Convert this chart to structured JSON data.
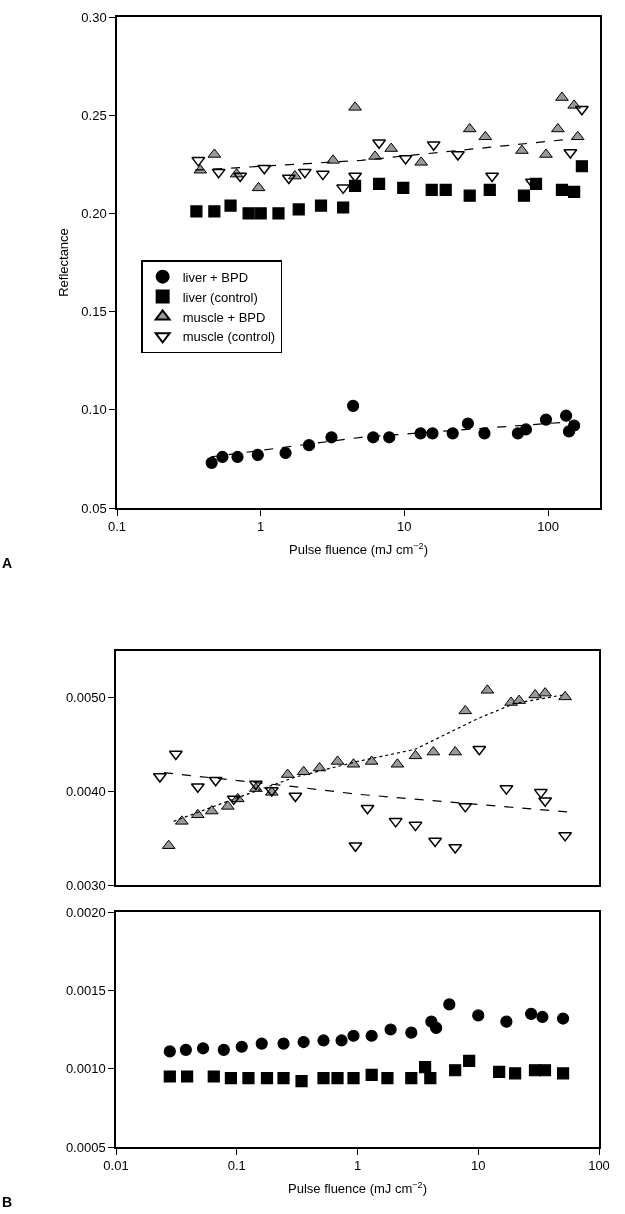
{
  "chart_data": [
    {
      "type": "scatter",
      "xlabel": "Pulse fluence (mJ cm$^{−2}$)",
      "ylabel": "Reflectance",
      "annotations": [
        "A"
      ],
      "log": "x",
      "xlim": [
        0.1,
        230
      ],
      "xticks": [
        0.1,
        1,
        10,
        100
      ],
      "ylim": [
        0.05,
        0.3
      ],
      "yticks": [
        {
          "value": 0.05,
          "label": "0.05"
        },
        {
          "value": 0.1,
          "label": "0.10"
        },
        {
          "value": 0.15,
          "label": "0.15"
        },
        {
          "value": 0.2,
          "label": "0.20"
        },
        {
          "value": 0.25,
          "label": "0.25"
        },
        {
          "value": 0.3,
          "label": "0.30"
        }
      ],
      "legend": "left",
      "series": [
        {
          "name": "liver + BPD",
          "color": "#000000",
          "marker": "circle",
          "x": [
            0.456,
            0.542,
            0.69,
            0.955,
            1.49,
            2.17,
            3.11,
            4.4,
            6.07,
            7.85,
            12.97,
            15.7,
            21.7,
            27.7,
            36.1,
            61.7,
            70.2,
            96.8,
            133.6,
            140,
            152
          ],
          "values": [
            0.073,
            0.076,
            0.076,
            0.077,
            0.078,
            0.082,
            0.086,
            0.102,
            0.086,
            0.086,
            0.088,
            0.088,
            0.088,
            0.093,
            0.088,
            0.088,
            0.09,
            0.095,
            0.097,
            0.089,
            0.092
          ]
        },
        {
          "name": "liver (control)",
          "color": "#000000",
          "marker": "square",
          "x": [
            0.357,
            0.476,
            0.617,
            0.824,
            1.0,
            1.33,
            1.84,
            2.63,
            3.75,
            4.54,
            6.67,
            9.83,
            15.5,
            19.4,
            28.5,
            39.3,
            68.0,
            82.5,
            125,
            152,
            172
          ],
          "values": [
            0.201,
            0.201,
            0.204,
            0.2,
            0.2,
            0.2,
            0.202,
            0.204,
            0.203,
            0.214,
            0.215,
            0.213,
            0.212,
            0.212,
            0.209,
            0.212,
            0.209,
            0.215,
            0.212,
            0.211,
            0.224
          ]
        },
        {
          "name": "muscle + BPD",
          "color": "#999999",
          "marker": "triangle",
          "x": [
            0.38,
            0.476,
            0.68,
            0.967,
            1.73,
            3.19,
            4.54,
            6.25,
            8.1,
            13.1,
            28.5,
            36.6,
            65.8,
            96.8,
            117,
            125,
            152,
            161
          ],
          "values": [
            0.222,
            0.23,
            0.22,
            0.213,
            0.219,
            0.227,
            0.254,
            0.229,
            0.233,
            0.226,
            0.243,
            0.239,
            0.232,
            0.23,
            0.243,
            0.259,
            0.255,
            0.239
          ]
        },
        {
          "name": "muscle (control)",
          "color": "#000000",
          "marker": "triangle-down",
          "x": [
            0.368,
            0.51,
            0.72,
            1.06,
            1.57,
            2.03,
            2.71,
            3.75,
            4.54,
            6.67,
            10.2,
            16.0,
            23.6,
            40.8,
            77.3,
            143,
            172
          ],
          "values": [
            0.227,
            0.221,
            0.219,
            0.223,
            0.218,
            0.221,
            0.22,
            0.213,
            0.219,
            0.236,
            0.228,
            0.235,
            0.23,
            0.219,
            0.216,
            0.231,
            0.253
          ]
        },
        {
          "type": "line",
          "color": "#000000",
          "line_style": "dashed",
          "marker": "none",
          "x": [
            0.45,
            5,
            150
          ],
          "values": [
            0.076,
            0.086,
            0.094
          ]
        },
        {
          "type": "line",
          "color": "#000000",
          "line_style": "dashed",
          "marker": "none",
          "x": [
            0.35,
            5,
            150
          ],
          "values": [
            0.222,
            0.227,
            0.238
          ]
        }
      ]
    },
    {
      "type": "scatter",
      "log": "x",
      "xlim": [
        0.01,
        100
      ],
      "tick_labels": "y",
      "ylim": [
        0.003,
        0.0055
      ],
      "yticks": [
        {
          "value": 0.003,
          "label": "0.0030"
        },
        {
          "value": 0.004,
          "label": "0.0040"
        },
        {
          "value": 0.005,
          "label": "0.0050"
        }
      ],
      "series": [
        {
          "color": "#999999",
          "marker": "triangle",
          "x": [
            0.0273,
            0.0351,
            0.0476,
            0.0621,
            0.0843,
            0.102,
            0.144,
            0.195,
            0.264,
            0.358,
            0.485,
            0.684,
            0.927,
            1.31,
            2.14,
            3.02,
            4.25,
            6.45,
            7.81,
            11.9,
            18.7,
            21.8,
            29.6,
            35.8,
            52.4
          ],
          "values": [
            0.00342,
            0.00368,
            0.00375,
            0.00379,
            0.00384,
            0.00392,
            0.00403,
            0.00399,
            0.00418,
            0.00421,
            0.00425,
            0.00432,
            0.00429,
            0.00432,
            0.00429,
            0.00438,
            0.00442,
            0.00442,
            0.00486,
            0.00508,
            0.00495,
            0.00497,
            0.00503,
            0.00505,
            0.00501
          ]
        },
        {
          "color": "#000000",
          "marker": "triangle-down",
          "x": [
            0.0231,
            0.0313,
            0.0476,
            0.0669,
            0.0944,
            0.144,
            0.195,
            0.306,
            0.962,
            1.21,
            2.07,
            3.02,
            4.39,
            6.45,
            7.81,
            10.2,
            17.1,
            33.0,
            35.8,
            52.4
          ],
          "values": [
            0.00416,
            0.0044,
            0.00405,
            0.00412,
            0.00392,
            0.00408,
            0.00401,
            0.00395,
            0.00342,
            0.00382,
            0.00368,
            0.00364,
            0.00347,
            0.0034,
            0.00384,
            0.00445,
            0.00403,
            0.00399,
            0.0039,
            0.00353
          ]
        },
        {
          "type": "line",
          "color": "#000000",
          "line_style": "dotted",
          "marker": "none",
          "x": [
            0.03,
            0.1,
            0.3,
            1,
            3,
            10,
            20,
            50
          ],
          "values": [
            0.00368,
            0.00393,
            0.00415,
            0.00432,
            0.00445,
            0.00478,
            0.00494,
            0.00503
          ]
        },
        {
          "type": "line",
          "color": "#000000",
          "line_style": "dashed",
          "marker": "none",
          "x": [
            0.025,
            0.3,
            1,
            10,
            55
          ],
          "values": [
            0.0042,
            0.00405,
            0.00397,
            0.00386,
            0.00378
          ]
        }
      ]
    },
    {
      "type": "scatter",
      "xlabel": "Pulse fluence (mJ cm$^{−2}$)",
      "annotations": [
        "B"
      ],
      "log": "x",
      "xlim": [
        0.01,
        100
      ],
      "xticks": [
        0.01,
        0.1,
        1,
        10,
        100
      ],
      "ylim": [
        0.0005,
        0.002
      ],
      "yticks": [
        {
          "value": 0.0005,
          "label": "0.0005"
        },
        {
          "value": 0.001,
          "label": "0.0010"
        },
        {
          "value": 0.0015,
          "label": "0.0015"
        },
        {
          "value": 0.002,
          "label": "0.0020"
        }
      ],
      "series": [
        {
          "color": "#000000",
          "marker": "circle",
          "x": [
            0.0279,
            0.0379,
            0.0526,
            0.0781,
            0.11,
            0.161,
            0.244,
            0.358,
            0.523,
            0.738,
            0.927,
            1.31,
            1.88,
            2.79,
            4.09,
            4.48,
            5.76,
            10.0,
            17.1,
            27.4,
            34.0,
            50.4
          ],
          "values": [
            0.00111,
            0.00112,
            0.00113,
            0.00112,
            0.00114,
            0.00116,
            0.00116,
            0.00117,
            0.00118,
            0.00118,
            0.00121,
            0.00121,
            0.00125,
            0.00123,
            0.0013,
            0.00126,
            0.00141,
            0.00134,
            0.0013,
            0.00135,
            0.00133,
            0.00132
          ]
        },
        {
          "color": "#000000",
          "marker": "square",
          "x": [
            0.0279,
            0.0388,
            0.0645,
            0.0895,
            0.125,
            0.178,
            0.244,
            0.344,
            0.523,
            0.683,
            0.927,
            1.31,
            1.77,
            2.79,
            3.63,
            4.01,
            6.44,
            8.41,
            14.9,
            20.2,
            29.5,
            35.7,
            50.4
          ],
          "values": [
            0.00095,
            0.00095,
            0.00095,
            0.00094,
            0.00094,
            0.00094,
            0.00094,
            0.00092,
            0.00094,
            0.00094,
            0.00094,
            0.00096,
            0.00094,
            0.00094,
            0.00101,
            0.00094,
            0.00099,
            0.00105,
            0.00098,
            0.00097,
            0.00099,
            0.00099,
            0.00097
          ]
        }
      ]
    }
  ]
}
